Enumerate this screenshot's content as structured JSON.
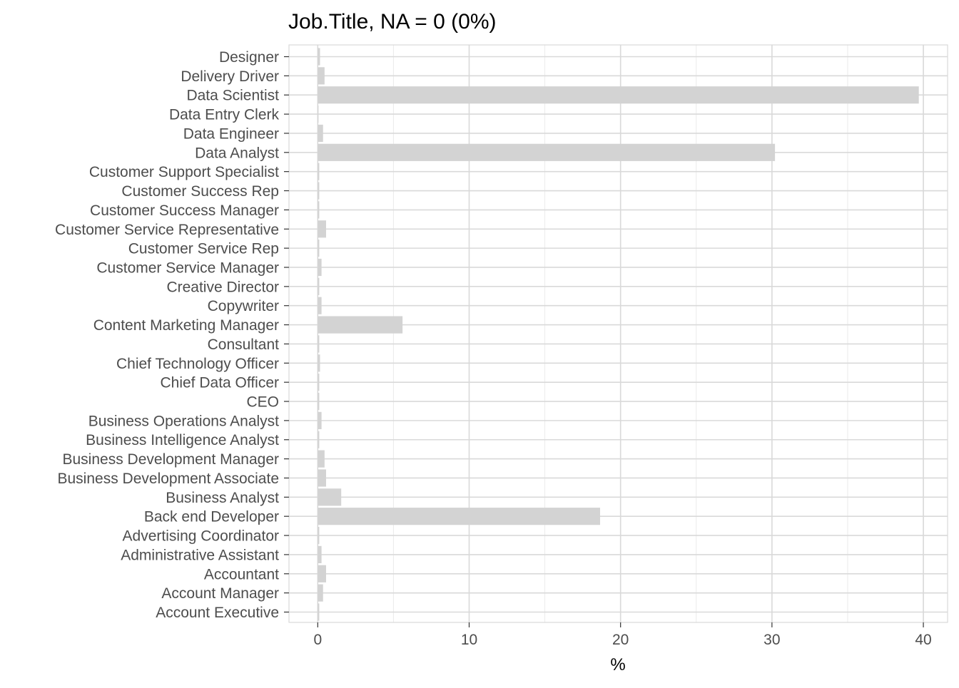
{
  "chart_data": {
    "type": "bar",
    "orientation": "horizontal",
    "title": "Job.Title, NA = 0 (0%)",
    "xlabel": "%",
    "ylabel": "",
    "xlim": [
      -1.9,
      41.6
    ],
    "x_ticks": [
      0,
      10,
      20,
      30,
      40
    ],
    "grid": true,
    "legend": "none",
    "bar_color": "#d3d3d3",
    "categories": [
      "Designer",
      "Delivery Driver",
      "Data Scientist",
      "Data Entry Clerk",
      "Data Engineer",
      "Data Analyst",
      "Customer Support Specialist",
      "Customer Success Rep",
      "Customer Success Manager",
      "Customer Service Representative",
      "Customer Service Rep",
      "Customer Service Manager",
      "Creative Director",
      "Copywriter",
      "Content Marketing Manager",
      "Consultant",
      "Chief Technology Officer",
      "Chief Data Officer",
      "CEO",
      "Business Operations Analyst",
      "Business Intelligence Analyst",
      "Business Development Manager",
      "Business Development Associate",
      "Business Analyst",
      "Back end Developer",
      "Advertising Coordinator",
      "Administrative Assistant",
      "Accountant",
      "Account Manager",
      "Account Executive"
    ],
    "values": [
      0.15,
      0.45,
      39.7,
      0.05,
      0.35,
      30.2,
      0.1,
      0.1,
      0.1,
      0.55,
      0.1,
      0.25,
      0.1,
      0.25,
      5.6,
      0.1,
      0.15,
      0.1,
      0.1,
      0.25,
      0.1,
      0.45,
      0.55,
      1.55,
      18.65,
      0.1,
      0.25,
      0.55,
      0.35,
      0.1
    ]
  }
}
